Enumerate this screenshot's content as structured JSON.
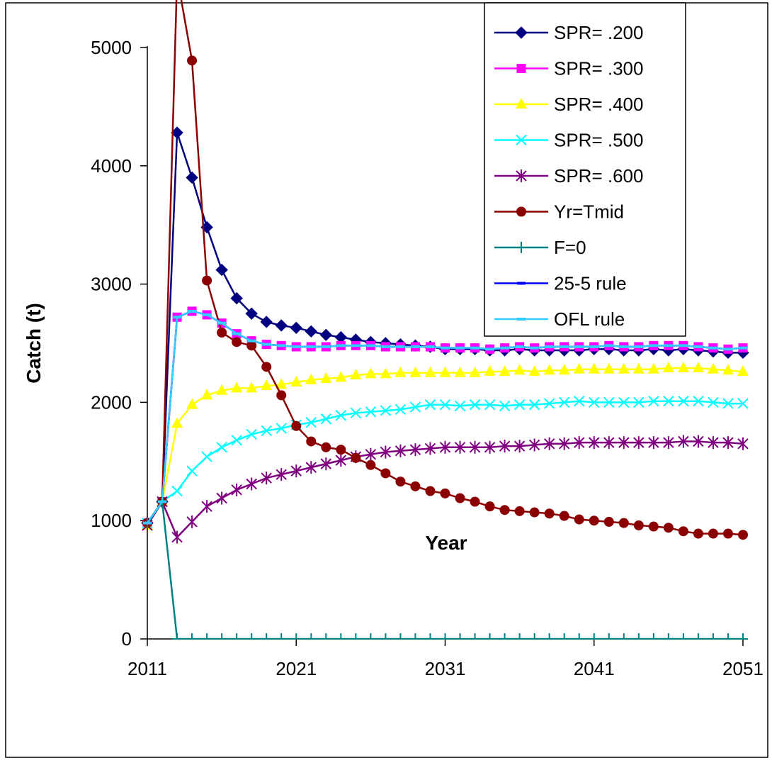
{
  "chart_data": {
    "type": "line",
    "title": "",
    "xlabel": "Year",
    "ylabel": "Catch (t)",
    "xlim": [
      2011,
      2051
    ],
    "ylim": [
      0,
      5000
    ],
    "x_ticks": [
      2011,
      2021,
      2031,
      2041,
      2051
    ],
    "y_ticks": [
      0,
      1000,
      2000,
      3000,
      4000,
      5000
    ],
    "grid": false,
    "legend_position": "top-right",
    "x": [
      2011,
      2012,
      2013,
      2014,
      2015,
      2016,
      2017,
      2018,
      2019,
      2020,
      2021,
      2022,
      2023,
      2024,
      2025,
      2026,
      2027,
      2028,
      2029,
      2030,
      2031,
      2032,
      2033,
      2034,
      2035,
      2036,
      2037,
      2038,
      2039,
      2040,
      2041,
      2042,
      2043,
      2044,
      2045,
      2046,
      2047,
      2048,
      2049,
      2050,
      2051
    ],
    "series": [
      {
        "name": "SPR= .200",
        "color": "#000080",
        "marker": "diamond",
        "values": [
          980,
          1160,
          4280,
          3900,
          3480,
          3120,
          2880,
          2750,
          2680,
          2650,
          2630,
          2600,
          2570,
          2550,
          2530,
          2510,
          2500,
          2490,
          2480,
          2470,
          2450,
          2450,
          2450,
          2440,
          2440,
          2450,
          2440,
          2440,
          2440,
          2440,
          2450,
          2450,
          2440,
          2440,
          2450,
          2440,
          2450,
          2440,
          2430,
          2420,
          2420
        ]
      },
      {
        "name": "SPR= .300",
        "color": "#ff00ff",
        "marker": "square",
        "values": [
          980,
          1160,
          2720,
          2770,
          2740,
          2670,
          2580,
          2520,
          2490,
          2480,
          2470,
          2470,
          2470,
          2480,
          2480,
          2480,
          2470,
          2470,
          2470,
          2470,
          2460,
          2460,
          2460,
          2450,
          2460,
          2470,
          2460,
          2470,
          2470,
          2470,
          2470,
          2480,
          2470,
          2470,
          2480,
          2480,
          2480,
          2470,
          2460,
          2450,
          2460
        ]
      },
      {
        "name": "SPR= .400",
        "color": "#ffff00",
        "marker": "triangle",
        "values": [
          960,
          1160,
          1820,
          1980,
          2060,
          2100,
          2120,
          2120,
          2140,
          2150,
          2170,
          2190,
          2200,
          2210,
          2230,
          2240,
          2240,
          2250,
          2250,
          2250,
          2250,
          2250,
          2250,
          2260,
          2260,
          2270,
          2260,
          2270,
          2270,
          2280,
          2280,
          2280,
          2280,
          2280,
          2280,
          2290,
          2290,
          2290,
          2280,
          2270,
          2260
        ]
      },
      {
        "name": "SPR= .500",
        "color": "#00ffff",
        "marker": "x",
        "values": [
          980,
          1160,
          1250,
          1420,
          1540,
          1620,
          1680,
          1730,
          1760,
          1780,
          1810,
          1830,
          1860,
          1890,
          1910,
          1920,
          1930,
          1940,
          1960,
          1980,
          1980,
          1970,
          1980,
          1980,
          1970,
          1980,
          1980,
          1990,
          2000,
          2010,
          2000,
          2000,
          2000,
          2000,
          2010,
          2010,
          2010,
          2010,
          2000,
          1990,
          1990
        ]
      },
      {
        "name": "SPR= .600",
        "color": "#800080",
        "marker": "asterisk",
        "values": [
          960,
          1160,
          860,
          990,
          1120,
          1190,
          1260,
          1310,
          1360,
          1390,
          1420,
          1450,
          1480,
          1510,
          1540,
          1560,
          1580,
          1590,
          1600,
          1610,
          1620,
          1620,
          1620,
          1620,
          1630,
          1630,
          1640,
          1650,
          1650,
          1660,
          1660,
          1660,
          1660,
          1660,
          1660,
          1660,
          1670,
          1670,
          1660,
          1660,
          1650
        ]
      },
      {
        "name": "Yr=Tmid",
        "color": "#8b0000",
        "marker": "circle",
        "values": [
          980,
          1160,
          5600,
          4890,
          3030,
          2590,
          2510,
          2480,
          2300,
          2060,
          1800,
          1670,
          1620,
          1600,
          1530,
          1470,
          1400,
          1330,
          1290,
          1250,
          1230,
          1190,
          1160,
          1120,
          1090,
          1080,
          1070,
          1060,
          1040,
          1010,
          1000,
          990,
          980,
          960,
          950,
          940,
          910,
          890,
          890,
          890,
          880
        ]
      },
      {
        "name": "F=0",
        "color": "#008080",
        "marker": "plus",
        "values": [
          980,
          1160,
          0,
          0,
          0,
          0,
          0,
          0,
          0,
          0,
          0,
          0,
          0,
          0,
          0,
          0,
          0,
          0,
          0,
          0,
          0,
          0,
          0,
          0,
          0,
          0,
          0,
          0,
          0,
          0,
          0,
          0,
          0,
          0,
          0,
          0,
          0,
          0,
          0,
          0,
          0
        ]
      },
      {
        "name": "25-5 rule",
        "color": "#0000ff",
        "marker": "dash",
        "values": [
          980,
          1160,
          2720,
          2770,
          2740,
          2670,
          2580,
          2520,
          2490,
          2480,
          2470,
          2470,
          2470,
          2480,
          2480,
          2480,
          2470,
          2470,
          2470,
          2470,
          2460,
          2460,
          2460,
          2450,
          2460,
          2470,
          2460,
          2470,
          2470,
          2470,
          2470,
          2480,
          2470,
          2470,
          2480,
          2480,
          2480,
          2470,
          2460,
          2450,
          2460
        ]
      },
      {
        "name": "OFL rule",
        "color": "#33ccff",
        "marker": "dash",
        "values": [
          980,
          1160,
          2720,
          2770,
          2740,
          2670,
          2580,
          2520,
          2490,
          2480,
          2470,
          2470,
          2470,
          2480,
          2480,
          2480,
          2470,
          2470,
          2470,
          2470,
          2460,
          2460,
          2460,
          2450,
          2460,
          2470,
          2460,
          2470,
          2470,
          2470,
          2470,
          2480,
          2470,
          2470,
          2480,
          2480,
          2480,
          2470,
          2460,
          2450,
          2460
        ]
      }
    ]
  }
}
